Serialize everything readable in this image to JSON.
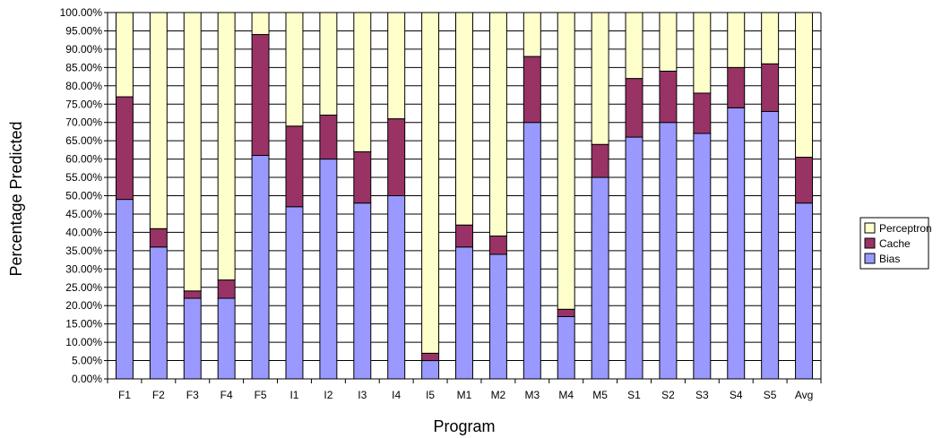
{
  "chart_data": {
    "type": "bar",
    "stacked": true,
    "categories": [
      "F1",
      "F2",
      "F3",
      "F4",
      "F5",
      "I1",
      "I2",
      "I3",
      "I4",
      "I5",
      "M1",
      "M2",
      "M3",
      "M4",
      "M5",
      "S1",
      "S2",
      "S3",
      "S4",
      "S5",
      "Avg"
    ],
    "series": [
      {
        "name": "Bias",
        "color": "#9999ff",
        "values": [
          49,
          36,
          22,
          22,
          61,
          47,
          60,
          48,
          50,
          5,
          36,
          34,
          70,
          17,
          55,
          66,
          70,
          67,
          74,
          73,
          48
        ]
      },
      {
        "name": "Cache",
        "color": "#993366",
        "values": [
          28,
          5,
          2,
          5,
          33,
          22,
          12,
          14,
          21,
          2,
          6,
          5,
          18,
          2,
          9,
          16,
          14,
          11,
          11,
          13,
          12.5
        ]
      },
      {
        "name": "Perceptron",
        "color": "#ffffcc",
        "values": [
          23,
          59,
          76,
          73,
          6,
          31,
          28,
          38,
          29,
          93,
          58,
          61,
          12,
          81,
          36,
          18,
          16,
          22,
          15,
          14,
          39.5
        ]
      }
    ],
    "xlabel": "Program",
    "ylabel": "Percentage Predicted",
    "ylim": [
      0,
      100
    ],
    "ytick_step": 5,
    "ytick_labels": [
      "0.00%",
      "5.00%",
      "10.00%",
      "15.00%",
      "20.00%",
      "25.00%",
      "30.00%",
      "35.00%",
      "40.00%",
      "45.00%",
      "50.00%",
      "55.00%",
      "60.00%",
      "65.00%",
      "70.00%",
      "75.00%",
      "80.00%",
      "85.00%",
      "90.00%",
      "95.00%",
      "100.00%"
    ],
    "legend_order": [
      "Perceptron",
      "Cache",
      "Bias"
    ],
    "legend_position": "right",
    "grid": true
  }
}
